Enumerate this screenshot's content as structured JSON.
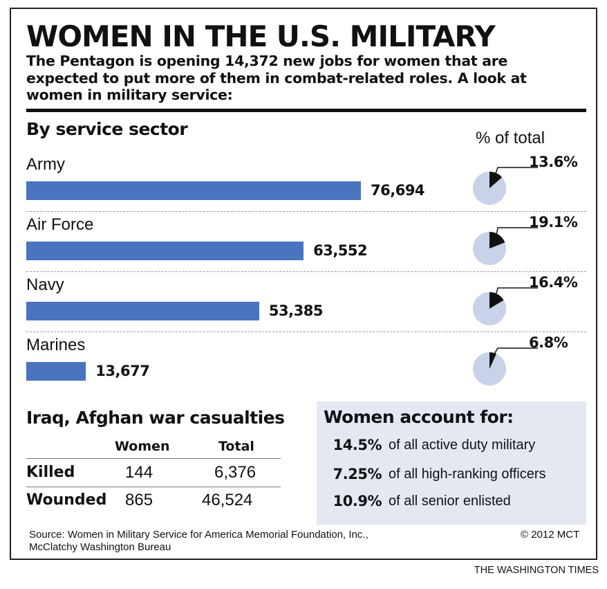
{
  "header": {
    "title": "WOMEN IN THE U.S. MILITARY",
    "subtitle": "The Pentagon is opening 14,372 new jobs for women that are expected to put more of them in combat-related roles. A look at women in military service:"
  },
  "chart_data": [
    {
      "type": "bar",
      "orientation": "horizontal",
      "title": "By service sector",
      "categories": [
        "Army",
        "Air Force",
        "Navy",
        "Marines"
      ],
      "values": [
        76694,
        63552,
        53385,
        13677
      ],
      "value_labels": [
        "76,694",
        "63,552",
        "53,385",
        "13,677"
      ],
      "bar_color": "#4a73c0",
      "grid": false,
      "legend": "none"
    },
    {
      "type": "pie",
      "title": "% of total",
      "categories": [
        "Army",
        "Air Force",
        "Navy",
        "Marines"
      ],
      "values": [
        13.6,
        19.1,
        16.4,
        6.8
      ],
      "value_labels": [
        "13.6%",
        "19.1%",
        "16.4%",
        "6.8%"
      ],
      "slice_color": "#111111",
      "rest_color": "#c8d2e8"
    },
    {
      "type": "table",
      "title": "Iraq, Afghan war casualties",
      "columns": [
        "",
        "Women",
        "Total"
      ],
      "rows": [
        {
          "label": "Killed",
          "women": "144",
          "total": "6,376"
        },
        {
          "label": "Wounded",
          "women": "865",
          "total": "46,524"
        }
      ]
    },
    {
      "type": "table",
      "title": "Women account for:",
      "rows": [
        {
          "value": "14.5%",
          "text": "of all active duty military"
        },
        {
          "value": "7.25%",
          "text": "of all high-ranking officers"
        },
        {
          "value": "10.9%",
          "text": "of all senior enlisted"
        }
      ]
    }
  ],
  "footer": {
    "source_line1": "Source: Women in Military Service for America Memorial Foundation, Inc.,",
    "source_line2": "McClatchy Washington Bureau",
    "credit": "© 2012 MCT",
    "publisher": "THE WASHINGTON TIMES"
  },
  "colors": {
    "bar": "#4a73c0",
    "pie_rest": "#c8d2e8",
    "pie_slice": "#111111",
    "box_background": "#e3e8f1"
  }
}
